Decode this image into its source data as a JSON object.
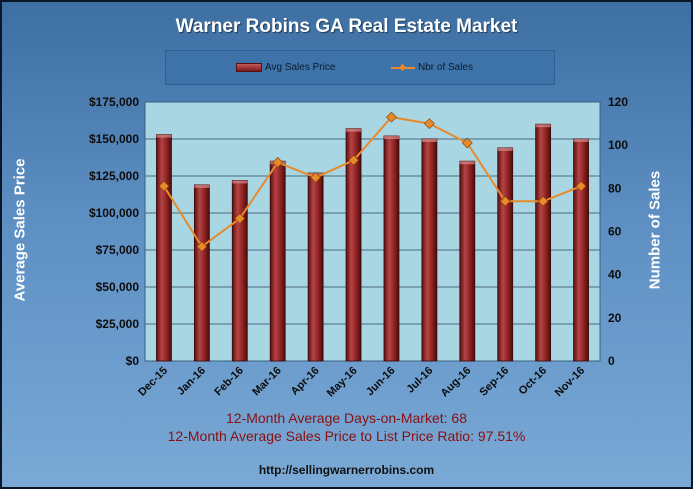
{
  "chart_data": {
    "type": "bar",
    "title": "Warner Robins GA Real Estate Market",
    "categories": [
      "Dec-15",
      "Jan-16",
      "Feb-16",
      "Mar-16",
      "Apr-16",
      "May-16",
      "Jun-16",
      "Jul-16",
      "Aug-16",
      "Sep-16",
      "Oct-16",
      "Nov-16"
    ],
    "series": [
      {
        "name": "Avg Sales Price",
        "type": "bar",
        "axis": "left",
        "values": [
          153000,
          119000,
          122000,
          135000,
          127000,
          157000,
          152000,
          150000,
          135000,
          144000,
          160000,
          150000
        ],
        "color": "#8b1f1f"
      },
      {
        "name": "Nbr of Sales",
        "type": "line",
        "axis": "right",
        "values": [
          81,
          53,
          66,
          92,
          85,
          93,
          113,
          110,
          101,
          74,
          74,
          81
        ],
        "color": "#e88a2a"
      }
    ],
    "ylabel": "Average Sales Price",
    "y2label": "Number of Sales",
    "ylim": [
      0,
      175000
    ],
    "y2lim": [
      0,
      120
    ],
    "yticks": [
      "$0",
      "$25,000",
      "$50,000",
      "$75,000",
      "$100,000",
      "$125,000",
      "$150,000",
      "$175,000"
    ],
    "y2ticks": [
      "0",
      "20",
      "40",
      "60",
      "80",
      "100",
      "120"
    ],
    "grid": true,
    "legend": "top"
  },
  "footer": {
    "stat1": "12-Month Average Days-on-Market: 68",
    "stat2": "12-Month Average Sales Price to List Price Ratio: 97.51%",
    "url": "http://sellingwarnerrobins.com"
  },
  "colors": {
    "plot_background": "#a9d6e3",
    "frame_background": "#5d8fc3",
    "stat_text": "#8a0f0f"
  }
}
